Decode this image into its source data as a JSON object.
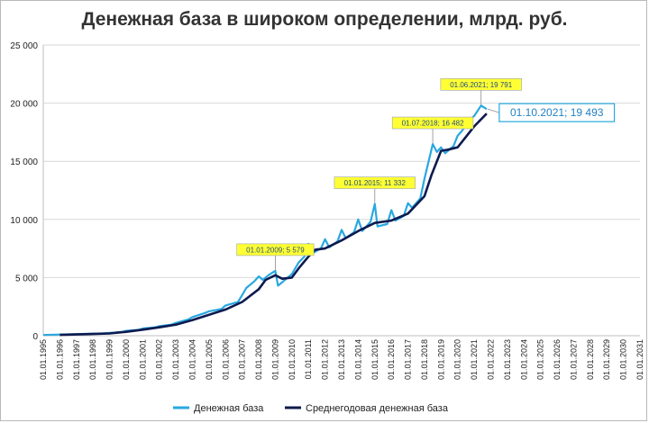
{
  "chart_data": {
    "type": "line",
    "title": "Денежная база в широком определении, млрд. руб.",
    "xlabel": "",
    "ylabel": "",
    "ylim": [
      0,
      25000
    ],
    "yticks": [
      0,
      5000,
      10000,
      15000,
      20000,
      25000
    ],
    "ytick_labels": [
      "0",
      "5 000",
      "10 000",
      "15 000",
      "20 000",
      "25 000"
    ],
    "xticks": [
      "01.01.1995",
      "01.01.1996",
      "01.01.1997",
      "01.01.1998",
      "01.01.1999",
      "01.01.2000",
      "01.01.2001",
      "01.01.2002",
      "01.01.2003",
      "01.01.2004",
      "01.01.2005",
      "01.01.2006",
      "01.01.2007",
      "01.01.2008",
      "01.01.2009",
      "01.01.2010",
      "01.01.2011",
      "01.01.2012",
      "01.01.2013",
      "01.01.2014",
      "01.01.2015",
      "01.01.2016",
      "01.01.2017",
      "01.01.2018",
      "01.01.2019",
      "01.01.2020",
      "01.01.2021",
      "01.01.2022",
      "01.01.2023",
      "01.01.2024",
      "01.01.2025",
      "01.01.2026",
      "01.01.2027",
      "01.01.2028",
      "01.01.2029",
      "01.01.2030",
      "01.01.2031"
    ],
    "grid": true,
    "legend_position": "bottom",
    "series": [
      {
        "name": "Денежная база",
        "color": "#29a8e0",
        "points": [
          [
            "1995-01-01",
            60
          ],
          [
            "1996-01-01",
            100
          ],
          [
            "1997-01-01",
            140
          ],
          [
            "1998-01-01",
            180
          ],
          [
            "1998-09-01",
            200
          ],
          [
            "1999-01-01",
            240
          ],
          [
            "1999-10-01",
            320
          ],
          [
            "2000-01-01",
            420
          ],
          [
            "2000-10-01",
            500
          ],
          [
            "2001-01-01",
            620
          ],
          [
            "2001-10-01",
            720
          ],
          [
            "2002-01-01",
            820
          ],
          [
            "2002-10-01",
            950
          ],
          [
            "2003-01-01",
            1100
          ],
          [
            "2003-10-01",
            1400
          ],
          [
            "2004-01-01",
            1600
          ],
          [
            "2004-10-01",
            1950
          ],
          [
            "2005-01-01",
            2100
          ],
          [
            "2005-10-01",
            2300
          ],
          [
            "2006-01-01",
            2600
          ],
          [
            "2006-10-01",
            2900
          ],
          [
            "2007-01-01",
            3500
          ],
          [
            "2007-04-01",
            4100
          ],
          [
            "2007-10-01",
            4700
          ],
          [
            "2008-01-01",
            5100
          ],
          [
            "2008-04-01",
            4800
          ],
          [
            "2008-08-01",
            5200
          ],
          [
            "2009-01-01",
            5579
          ],
          [
            "2009-03-01",
            4300
          ],
          [
            "2009-06-01",
            4600
          ],
          [
            "2009-10-01",
            5000
          ],
          [
            "2010-01-01",
            5300
          ],
          [
            "2010-06-01",
            6300
          ],
          [
            "2010-10-01",
            6800
          ],
          [
            "2011-01-01",
            7900
          ],
          [
            "2011-04-01",
            7100
          ],
          [
            "2011-10-01",
            7500
          ],
          [
            "2012-01-01",
            8300
          ],
          [
            "2012-04-01",
            7600
          ],
          [
            "2012-10-01",
            8100
          ],
          [
            "2013-01-01",
            9100
          ],
          [
            "2013-04-01",
            8400
          ],
          [
            "2013-10-01",
            8900
          ],
          [
            "2014-01-01",
            10000
          ],
          [
            "2014-04-01",
            9000
          ],
          [
            "2014-10-01",
            9800
          ],
          [
            "2015-01-01",
            11332
          ],
          [
            "2015-03-01",
            9400
          ],
          [
            "2015-10-01",
            9600
          ],
          [
            "2016-01-01",
            10800
          ],
          [
            "2016-04-01",
            9900
          ],
          [
            "2016-10-01",
            10300
          ],
          [
            "2017-01-01",
            11400
          ],
          [
            "2017-04-01",
            11000
          ],
          [
            "2017-10-01",
            11800
          ],
          [
            "2018-01-01",
            13500
          ],
          [
            "2018-07-01",
            16482
          ],
          [
            "2018-10-01",
            15800
          ],
          [
            "2019-01-01",
            16200
          ],
          [
            "2019-04-01",
            15700
          ],
          [
            "2019-10-01",
            16300
          ],
          [
            "2020-01-01",
            17200
          ],
          [
            "2020-04-01",
            17600
          ],
          [
            "2020-10-01",
            18600
          ],
          [
            "2021-01-01",
            18900
          ],
          [
            "2021-06-01",
            19791
          ],
          [
            "2021-10-01",
            19493
          ]
        ]
      },
      {
        "name": "Среднегодовая денежная база",
        "color": "#0d1a4f",
        "points": [
          [
            "1996-01-01",
            70
          ],
          [
            "1997-01-01",
            110
          ],
          [
            "1998-01-01",
            150
          ],
          [
            "1999-01-01",
            190
          ],
          [
            "2000-01-01",
            330
          ],
          [
            "2001-01-01",
            520
          ],
          [
            "2002-01-01",
            720
          ],
          [
            "2003-01-01",
            950
          ],
          [
            "2004-01-01",
            1350
          ],
          [
            "2005-01-01",
            1800
          ],
          [
            "2006-01-01",
            2250
          ],
          [
            "2007-01-01",
            2900
          ],
          [
            "2008-01-01",
            4000
          ],
          [
            "2008-06-01",
            4800
          ],
          [
            "2009-01-01",
            5200
          ],
          [
            "2009-06-01",
            4900
          ],
          [
            "2010-01-01",
            5000
          ],
          [
            "2010-06-01",
            5800
          ],
          [
            "2011-01-01",
            6800
          ],
          [
            "2011-06-01",
            7400
          ],
          [
            "2012-01-01",
            7500
          ],
          [
            "2013-01-01",
            8200
          ],
          [
            "2014-01-01",
            9000
          ],
          [
            "2015-01-01",
            9700
          ],
          [
            "2016-01-01",
            9900
          ],
          [
            "2017-01-01",
            10500
          ],
          [
            "2018-01-01",
            12000
          ],
          [
            "2018-06-01",
            13800
          ],
          [
            "2019-01-01",
            15900
          ],
          [
            "2019-06-01",
            16000
          ],
          [
            "2020-01-01",
            16200
          ],
          [
            "2021-01-01",
            18000
          ],
          [
            "2021-10-01",
            19100
          ]
        ]
      }
    ],
    "annotations": [
      {
        "date": "2009-01-01",
        "value": 5579,
        "label": "01.01.2009;  5 579"
      },
      {
        "date": "2015-01-01",
        "value": 11332,
        "label": "01.01.2015;  11 332"
      },
      {
        "date": "2018-07-01",
        "value": 16482,
        "label": "01.07.2018;  16 482"
      },
      {
        "date": "2021-06-01",
        "value": 19791,
        "label": "01.06.2021;  19 791"
      }
    ],
    "callout": {
      "date": "2021-10-01",
      "value": 19493,
      "label": "01.10.2021;  19 493"
    }
  }
}
